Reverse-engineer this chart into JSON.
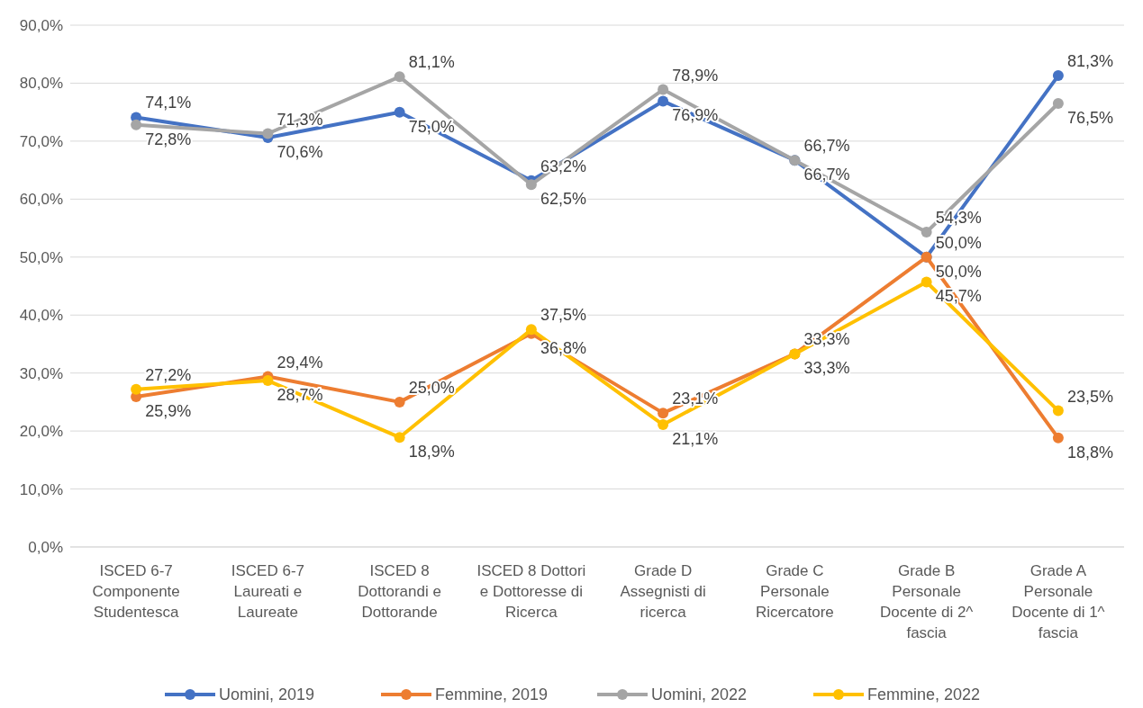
{
  "chart_data": {
    "type": "line",
    "categories": [
      "ISCED 6-7 Componente Studentesca",
      "ISCED 6-7 Laureati e Laureate",
      "ISCED 8 Dottorandi e Dottorande",
      "ISCED 8 Dottori e Dottoresse di Ricerca",
      "Grade D Assegnisti di ricerca",
      "Grade C Personale Ricercatore",
      "Grade B Personale Docente di 2^ fascia",
      "Grade A Personale Docente di 1^ fascia"
    ],
    "series": [
      {
        "name": "Uomini, 2019",
        "color": "#4472c4",
        "values": [
          74.1,
          70.6,
          75.0,
          63.2,
          76.9,
          66.7,
          50.0,
          81.3
        ],
        "value_labels": [
          "74,1%",
          "70,6%",
          "75,0%",
          "63,2%",
          "76,9%",
          "66,7%",
          "50,0%",
          "81,3%"
        ]
      },
      {
        "name": "Femmine, 2019",
        "color": "#ed7d31",
        "values": [
          25.9,
          29.4,
          25.0,
          36.8,
          23.1,
          33.3,
          50.0,
          18.8
        ],
        "value_labels": [
          "25,9%",
          "29,4%",
          "25,0%",
          "36,8%",
          "23,1%",
          "33,3%",
          "50,0%",
          "18,8%"
        ]
      },
      {
        "name": "Uomini, 2022",
        "color": "#a5a5a5",
        "values": [
          72.8,
          71.3,
          81.1,
          62.5,
          78.9,
          66.7,
          54.3,
          76.5
        ],
        "value_labels": [
          "72,8%",
          "71,3%",
          "81,1%",
          "62,5%",
          "78,9%",
          "66,7%",
          "54,3%",
          "76,5%"
        ]
      },
      {
        "name": "Femmine, 2022",
        "color": "#ffc000",
        "values": [
          27.2,
          28.7,
          18.9,
          37.5,
          21.1,
          33.3,
          45.7,
          23.5
        ],
        "value_labels": [
          "27,2%",
          "28,7%",
          "18,9%",
          "37,5%",
          "21,1%",
          "33,3%",
          "45,7%",
          "23,5%"
        ]
      }
    ],
    "ylim": [
      0,
      90
    ],
    "yticks": [
      {
        "value": 0,
        "label": "0,0%"
      },
      {
        "value": 10,
        "label": "10,0%"
      },
      {
        "value": 20,
        "label": "20,0%"
      },
      {
        "value": 30,
        "label": "30,0%"
      },
      {
        "value": 40,
        "label": "40,0%"
      },
      {
        "value": 50,
        "label": "50,0%"
      },
      {
        "value": 60,
        "label": "60,0%"
      },
      {
        "value": 70,
        "label": "70,0%"
      },
      {
        "value": 80,
        "label": "80,0%"
      },
      {
        "value": 90,
        "label": "90,0%"
      }
    ],
    "grid": "y",
    "legend": "bottom",
    "marker": "circle",
    "line_style": "solid"
  }
}
